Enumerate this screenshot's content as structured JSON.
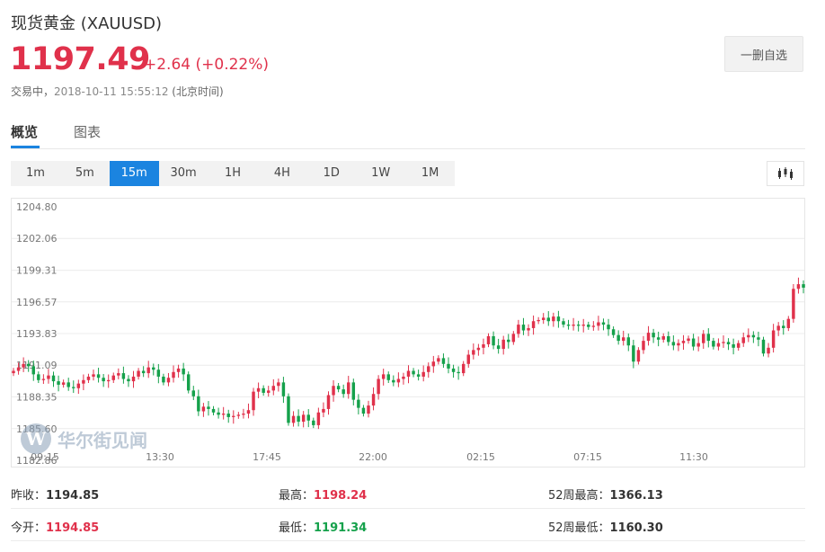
{
  "header": {
    "title": "现货黄金  (XAUUSD)",
    "price": "1197.49",
    "change": "+2.64 (+0.22%)",
    "trade_label": "交易中，",
    "trade_time": "2018-10-11 15:55:12",
    "trade_tz": "(北京时间)",
    "fav_button": "一删自选"
  },
  "tabs": [
    "概览",
    "图表"
  ],
  "periods": [
    "1m",
    "5m",
    "15m",
    "30m",
    "1H",
    "4H",
    "1D",
    "1W",
    "1M"
  ],
  "active_period": "15m",
  "colors": {
    "up": "#e0314b",
    "down": "#15a14b",
    "accent": "#1b84e0"
  },
  "watermark": "华尔街见闻",
  "icons": {
    "chart_type": "candlestick-icon",
    "watermark_logo": "wallstreetcn-logo-icon"
  },
  "stats": {
    "prev_close_label": "昨收：",
    "prev_close": "1194.85",
    "high_label": "最高：",
    "high": "1198.24",
    "high52_label": "52周最高：",
    "high52": "1366.13",
    "open_label": "今开：",
    "open": "1194.85",
    "low_label": "最低：",
    "low": "1191.34",
    "low52_label": "52周最低：",
    "low52": "1160.30"
  },
  "chart_data": {
    "type": "candlestick",
    "ylim": [
      1182.86,
      1204.8
    ],
    "y_ticks": [
      "1204.80",
      "1202.06",
      "1199.31",
      "1196.57",
      "1193.83",
      "1191.09",
      "1188.35",
      "1185.60",
      "1182.86"
    ],
    "x_ticks": [
      "09:15",
      "13:30",
      "17:45",
      "22:00",
      "02:15",
      "07:15",
      "11:30"
    ],
    "grid": true,
    "closes": [
      1190.6,
      1190.9,
      1191.2,
      1191.0,
      1190.3,
      1189.8,
      1189.9,
      1190.2,
      1189.7,
      1189.4,
      1189.6,
      1189.2,
      1189.1,
      1189.5,
      1189.8,
      1190.1,
      1190.3,
      1190.0,
      1189.7,
      1189.8,
      1190.2,
      1190.4,
      1189.9,
      1189.7,
      1190.1,
      1190.6,
      1190.4,
      1190.9,
      1190.7,
      1190.1,
      1189.6,
      1190.0,
      1190.5,
      1190.8,
      1190.3,
      1188.9,
      1188.4,
      1187.1,
      1187.5,
      1187.3,
      1187.0,
      1186.8,
      1186.9,
      1186.6,
      1186.7,
      1186.8,
      1186.9,
      1187.2,
      1188.8,
      1189.1,
      1188.7,
      1188.9,
      1189.3,
      1189.6,
      1188.4,
      1186.1,
      1186.7,
      1186.2,
      1186.8,
      1186.3,
      1185.9,
      1187.0,
      1187.3,
      1188.5,
      1189.3,
      1189.0,
      1188.6,
      1189.6,
      1188.1,
      1187.4,
      1186.9,
      1187.6,
      1188.6,
      1189.9,
      1190.3,
      1189.8,
      1189.6,
      1189.9,
      1190.1,
      1190.6,
      1190.3,
      1190.1,
      1190.5,
      1191.0,
      1191.4,
      1191.7,
      1191.2,
      1190.8,
      1190.5,
      1190.4,
      1191.2,
      1192.0,
      1192.4,
      1192.6,
      1192.9,
      1193.6,
      1192.8,
      1192.5,
      1193.3,
      1193.1,
      1193.8,
      1194.6,
      1194.1,
      1194.3,
      1194.9,
      1195.0,
      1195.2,
      1194.9,
      1195.3,
      1194.9,
      1194.6,
      1194.5,
      1194.6,
      1194.5,
      1194.6,
      1194.4,
      1194.5,
      1194.8,
      1194.6,
      1194.2,
      1193.7,
      1193.2,
      1193.5,
      1192.8,
      1191.4,
      1192.4,
      1193.2,
      1193.9,
      1193.5,
      1193.3,
      1193.6,
      1193.1,
      1192.8,
      1193.0,
      1193.2,
      1193.4,
      1192.7,
      1193.0,
      1193.8,
      1193.2,
      1192.7,
      1193.0,
      1193.1,
      1192.9,
      1192.6,
      1193.0,
      1193.5,
      1193.7,
      1193.5,
      1193.3,
      1192.1,
      1192.6,
      1194.1,
      1194.5,
      1194.3,
      1195.1,
      1197.7,
      1198.1,
      1197.8
    ]
  }
}
